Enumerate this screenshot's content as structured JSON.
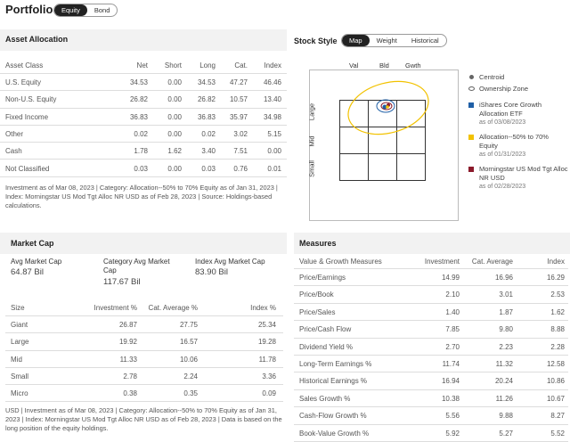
{
  "header": {
    "title": "Portfolio",
    "tabs": [
      "Equity",
      "Bond"
    ],
    "active_tab": "Equity"
  },
  "asset_allocation": {
    "title": "Asset Allocation",
    "columns": [
      "Asset Class",
      "Net",
      "Short",
      "Long",
      "Cat.",
      "Index"
    ],
    "rows": [
      [
        "U.S. Equity",
        "34.53",
        "0.00",
        "34.53",
        "47.27",
        "46.46"
      ],
      [
        "Non-U.S. Equity",
        "26.82",
        "0.00",
        "26.82",
        "10.57",
        "13.40"
      ],
      [
        "Fixed Income",
        "36.83",
        "0.00",
        "36.83",
        "35.97",
        "34.98"
      ],
      [
        "Other",
        "0.02",
        "0.00",
        "0.02",
        "3.02",
        "5.15"
      ],
      [
        "Cash",
        "1.78",
        "1.62",
        "3.40",
        "7.51",
        "0.00"
      ],
      [
        "Not Classified",
        "0.03",
        "0.00",
        "0.03",
        "0.76",
        "0.01"
      ]
    ],
    "note": "Investment as of Mar 08, 2023 | Category: Allocation--50% to 70% Equity as of Jan 31, 2023 | Index: Morningstar US Mod Tgt Alloc NR USD as of Feb 28, 2023 | Source: Holdings-based calculations."
  },
  "stock_style": {
    "title": "Stock Style",
    "tabs": [
      "Map",
      "Weight",
      "Historical"
    ],
    "active_tab": "Map",
    "col_labels": [
      "Val",
      "Bld",
      "Gwth"
    ],
    "row_labels": [
      "Large",
      "Mid",
      "Small"
    ],
    "legend": {
      "centroid": "Centroid",
      "ownership": "Ownership Zone",
      "items": [
        {
          "label": "iShares Core Growth Allocation ETF",
          "date": "as of 03/08/2023",
          "color": "#1f5fa6"
        },
        {
          "label": "Allocation--50% to 70% Equity",
          "date": "as of 01/31/2023",
          "color": "#f2c200"
        },
        {
          "label": "Morningstar US Mod Tgt Alloc NR USD",
          "date": "as of 02/28/2023",
          "color": "#8b1a2b"
        }
      ]
    }
  },
  "market_cap": {
    "title": "Market Cap",
    "summary": [
      {
        "label": "Avg Market Cap",
        "value": "64.87 Bil"
      },
      {
        "label": "Category Avg Market Cap",
        "value": "117.67 Bil"
      },
      {
        "label": "Index Avg Market Cap",
        "value": "83.90 Bil"
      }
    ],
    "columns": [
      "Size",
      "Investment %",
      "Cat. Average %",
      "Index %"
    ],
    "rows": [
      [
        "Giant",
        "26.87",
        "27.75",
        "25.34"
      ],
      [
        "Large",
        "19.92",
        "16.57",
        "19.28"
      ],
      [
        "Mid",
        "11.33",
        "10.06",
        "11.78"
      ],
      [
        "Small",
        "2.78",
        "2.24",
        "3.36"
      ],
      [
        "Micro",
        "0.38",
        "0.35",
        "0.09"
      ]
    ],
    "note": "USD | Investment as of Mar 08, 2023 | Category: Allocation--50% to 70% Equity as of Jan 31, 2023 | Index: Morningstar US Mod Tgt Alloc NR USD as of Feb 28, 2023 | Data is based on the long position of the equity holdings."
  },
  "measures": {
    "title": "Measures",
    "columns": [
      "Value & Growth Measures",
      "Investment",
      "Cat. Average",
      "Index"
    ],
    "rows": [
      [
        "Price/Earnings",
        "14.99",
        "16.96",
        "16.29"
      ],
      [
        "Price/Book",
        "2.10",
        "3.01",
        "2.53"
      ],
      [
        "Price/Sales",
        "1.40",
        "1.87",
        "1.62"
      ],
      [
        "Price/Cash Flow",
        "7.85",
        "9.80",
        "8.88"
      ],
      [
        "Dividend Yield %",
        "2.70",
        "2.23",
        "2.28"
      ],
      [
        "Long-Term Earnings %",
        "11.74",
        "11.32",
        "12.58"
      ],
      [
        "Historical Earnings %",
        "16.94",
        "20.24",
        "10.86"
      ],
      [
        "Sales Growth %",
        "10.38",
        "11.26",
        "10.67"
      ],
      [
        "Cash-Flow Growth %",
        "5.56",
        "9.88",
        "8.27"
      ],
      [
        "Book-Value Growth %",
        "5.92",
        "5.27",
        "5.52"
      ]
    ]
  }
}
